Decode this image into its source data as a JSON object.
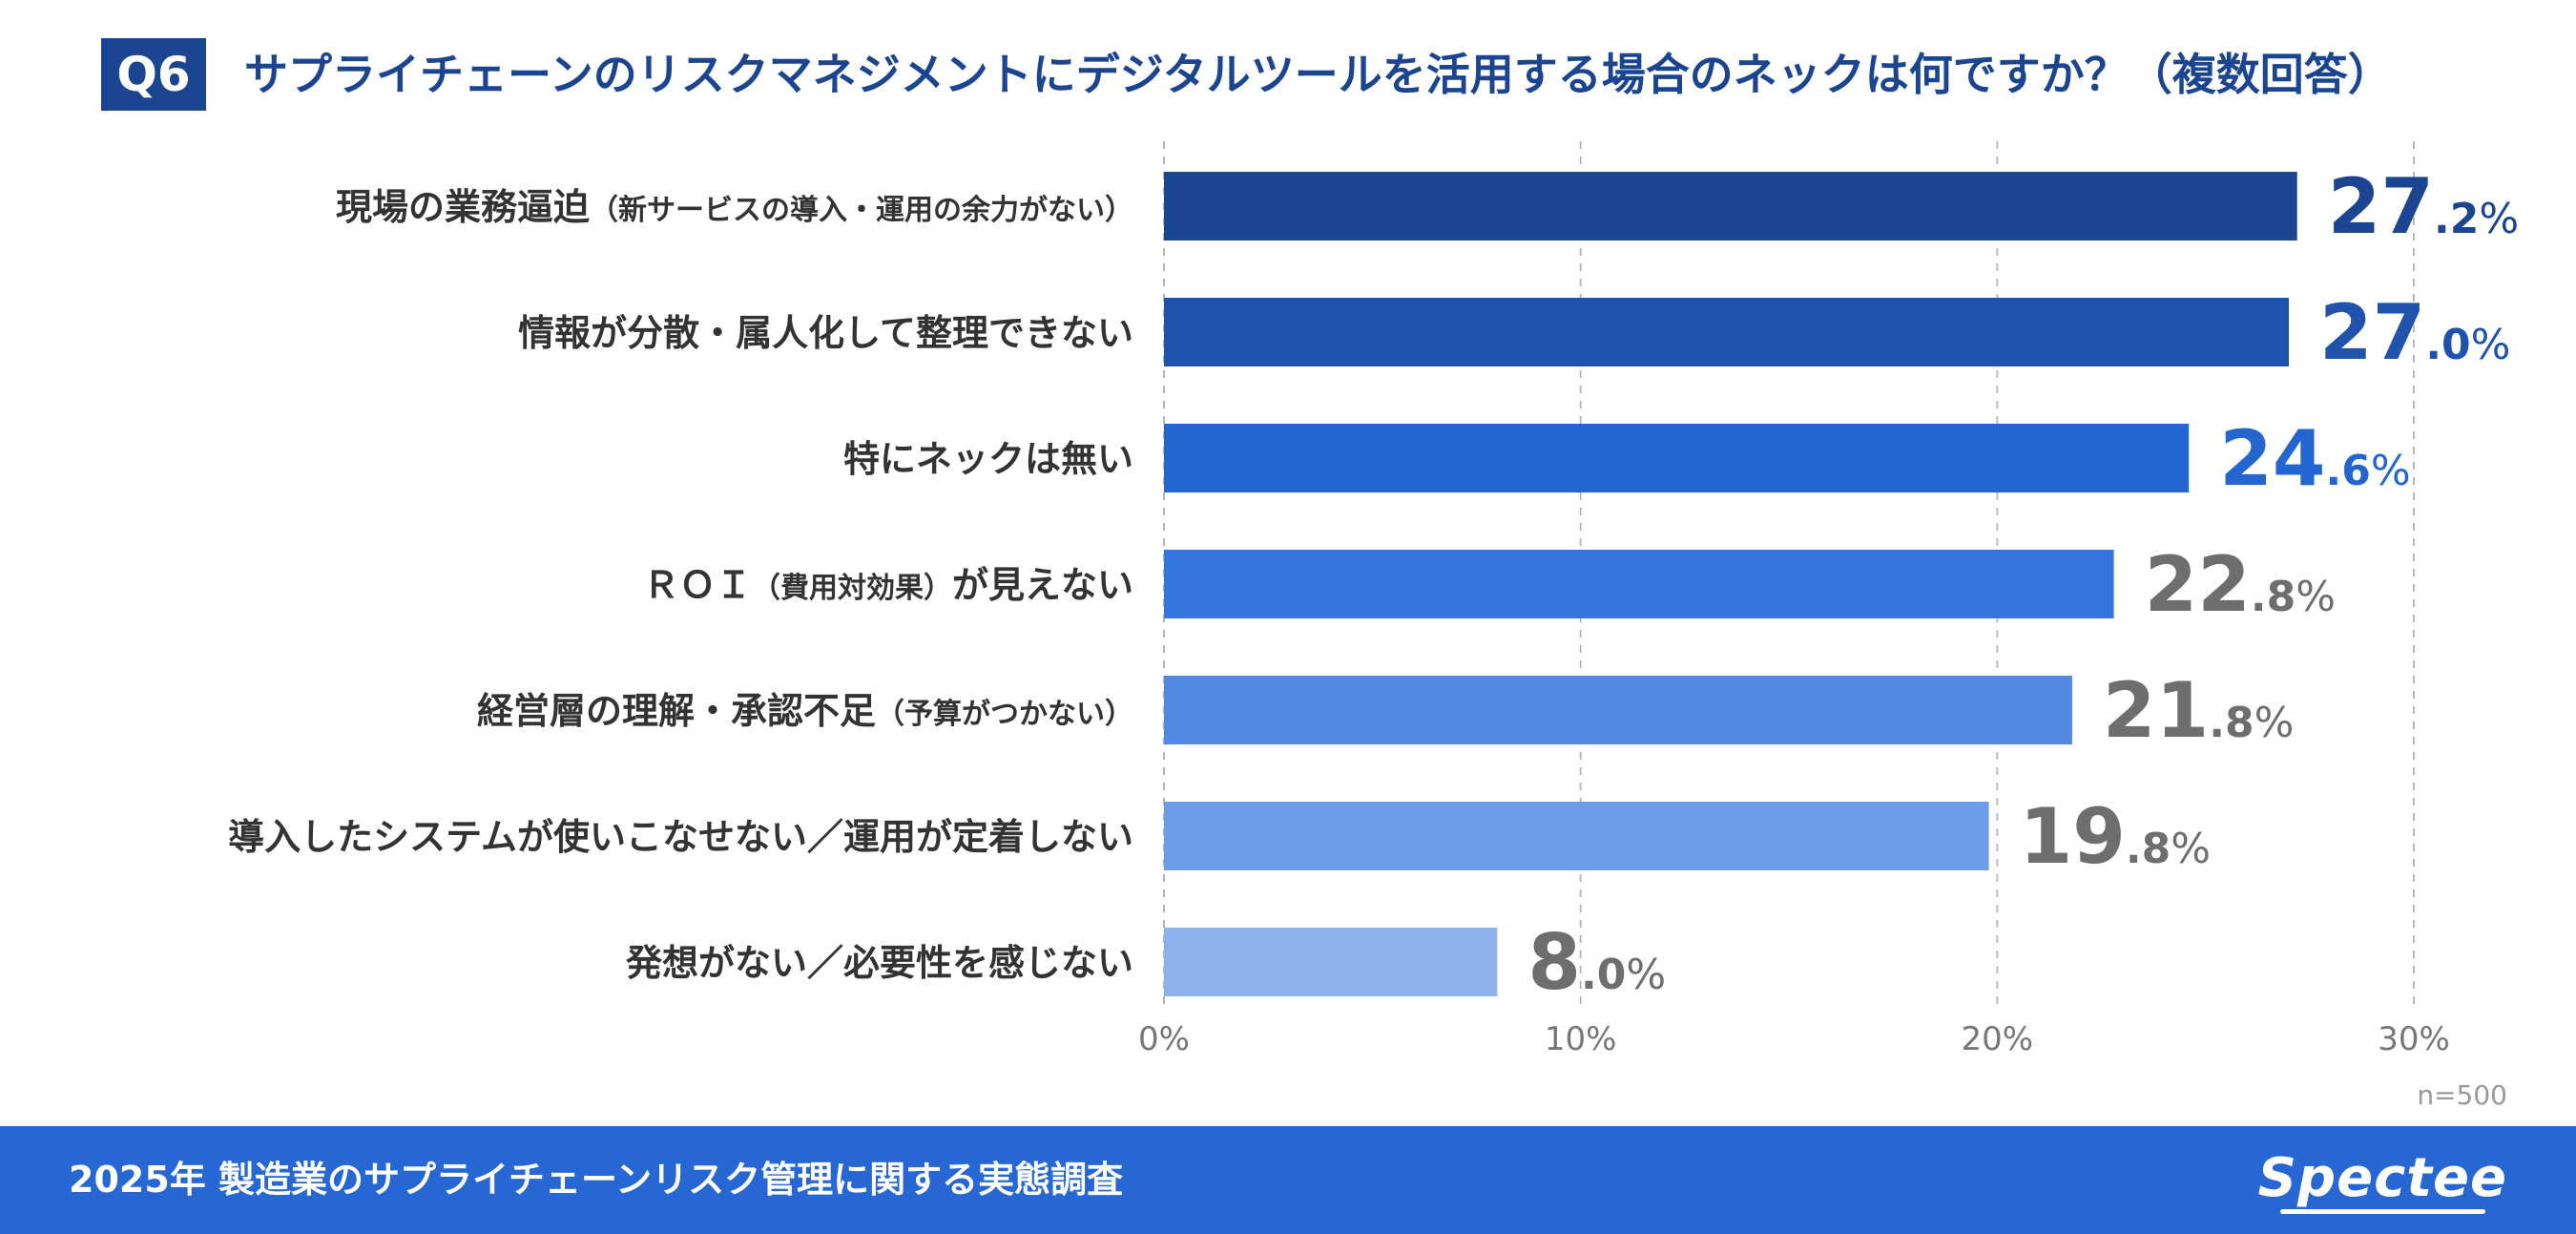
{
  "header": {
    "badge": "Q6",
    "question": "サプライチェーンのリスクマネジメントにデジタルツールを活用する場合のネックは何ですか？（複数回答）"
  },
  "chart_data": {
    "type": "bar",
    "orientation": "horizontal",
    "title": "サプライチェーンのリスクマネジメントにデジタルツールを活用する場合のネックは何ですか？（複数回答）",
    "categories": [
      {
        "main": "現場の業務逼迫",
        "sub": "（新サービスの導入・運用の余力がない）"
      },
      {
        "main": "情報が分散・属人化して整理できない",
        "sub": ""
      },
      {
        "main": "特にネックは無い",
        "sub": ""
      },
      {
        "main": "ＲＯＩ",
        "sub": "（費用対効果）",
        "tail": "が見えない"
      },
      {
        "main": "経営層の理解・承認不足",
        "sub": "（予算がつかない）"
      },
      {
        "main": "導入したシステムが使いこなせない／運用が定着しない",
        "sub": ""
      },
      {
        "main": "発想がない／必要性を感じない",
        "sub": ""
      }
    ],
    "values": [
      27.2,
      27.0,
      24.6,
      22.8,
      21.8,
      19.8,
      8.0
    ],
    "value_labels": [
      {
        "int": "27",
        "dec": ".2",
        "unit": "%"
      },
      {
        "int": "27",
        "dec": ".0",
        "unit": "%"
      },
      {
        "int": "24",
        "dec": ".6",
        "unit": "%"
      },
      {
        "int": "22",
        "dec": ".8",
        "unit": "%"
      },
      {
        "int": "21",
        "dec": ".8",
        "unit": "%"
      },
      {
        "int": "19",
        "dec": ".8",
        "unit": "%"
      },
      {
        "int": "8",
        "dec": ".0",
        "unit": "%"
      }
    ],
    "bar_colors": [
      "#1b4590",
      "#1f52ad",
      "#2466d0",
      "#3476de",
      "#5189e3",
      "#6e9de7",
      "#8db2ec"
    ],
    "label_colors": [
      "#1b4590",
      "#1f52ad",
      "#2466d0",
      "#6e6e6e",
      "#6e6e6e",
      "#6e6e6e",
      "#6e6e6e"
    ],
    "xlim": [
      0,
      30
    ],
    "xticks": [
      0,
      10,
      20,
      30
    ],
    "xtick_labels": [
      "0%",
      "10%",
      "20%",
      "30%"
    ],
    "grid": true,
    "sample_note": "n=500"
  },
  "footer": {
    "survey_title": "2025年 製造業のサプライチェーンリスク管理に関する実態調査",
    "brand": "Spectee"
  }
}
